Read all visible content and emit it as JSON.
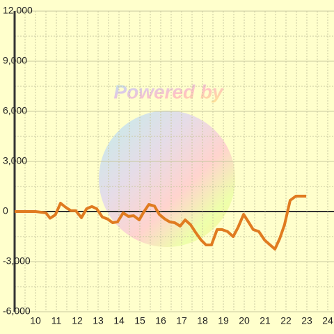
{
  "chart_data": {
    "type": "line",
    "watermark": "Powered by",
    "x": [
      9,
      10,
      10.5,
      10.7,
      10.95,
      11.2,
      11.45,
      11.7,
      11.93,
      12.2,
      12.45,
      12.7,
      12.93,
      13.2,
      13.45,
      13.7,
      13.93,
      14.2,
      14.45,
      14.7,
      14.97,
      15.2,
      15.43,
      15.7,
      15.93,
      16.2,
      16.43,
      16.67,
      16.93,
      17.17,
      17.43,
      17.67,
      17.93,
      18.17,
      18.43,
      18.7,
      18.93,
      19.2,
      19.47,
      19.7,
      19.97,
      20.2,
      20.43,
      20.7,
      20.97,
      21.2,
      21.47,
      21.7,
      21.93,
      22.2,
      22.47,
      22.97
    ],
    "series": [
      {
        "color": "#e07b20",
        "values": [
          0,
          0,
          -80,
          -400,
          -200,
          500,
          250,
          50,
          50,
          -370,
          170,
          300,
          170,
          -330,
          -450,
          -670,
          -620,
          -80,
          -290,
          -250,
          -500,
          0,
          420,
          330,
          -170,
          -450,
          -620,
          -670,
          -870,
          -500,
          -790,
          -1250,
          -1700,
          -2000,
          -2000,
          -1080,
          -1080,
          -1200,
          -1500,
          -960,
          -170,
          -620,
          -1080,
          -1200,
          -1700,
          -1960,
          -2250,
          -1620,
          -790,
          670,
          920,
          920
        ]
      }
    ],
    "xlim": [
      9,
      24.3
    ],
    "ylim": [
      -6000,
      12000
    ],
    "xticks": [
      10,
      11,
      12,
      13,
      14,
      15,
      16,
      17,
      18,
      19,
      20,
      21,
      22,
      23,
      24
    ],
    "yticks": [
      {
        "value": -6000,
        "label": "-6,000"
      },
      {
        "value": -3000,
        "label": "-3,000"
      },
      0,
      {
        "value": 3000,
        "label": "3,000"
      },
      {
        "value": 6000,
        "label": "6,000"
      },
      {
        "value": 9000,
        "label": "9,000"
      },
      {
        "value": 12000,
        "label": "12,000"
      }
    ],
    "x_minor_ticks": [
      9.5,
      10.5,
      11.5,
      12.5,
      13.5,
      14.5,
      15.5,
      16.5,
      17.5,
      18.5,
      19.5,
      20.5,
      21.5,
      22.5,
      23.5
    ],
    "y_minor_ticks": [
      -4500,
      -1500,
      1500,
      4500,
      7500,
      10500
    ],
    "grid": true
  }
}
